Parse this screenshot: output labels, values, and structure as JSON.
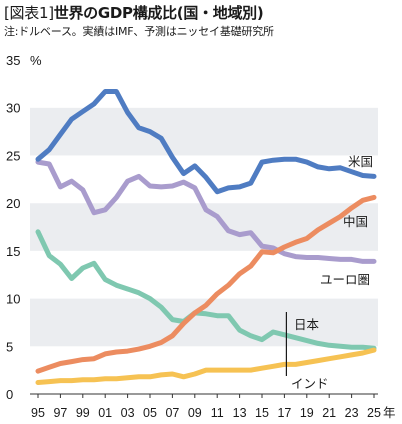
{
  "header": {
    "title_tag": "[図表1]",
    "title_main": "世界のGDP構成比(国・地域別)",
    "note": "注:ドルベース。実績はIMF、予測はニッセイ基礎研究所"
  },
  "chart_data": {
    "type": "line",
    "title": "世界のGDP構成比(国・地域別)",
    "yunit": "%",
    "ylim": [
      0,
      35
    ],
    "yticks": [
      "0",
      "5",
      "10",
      "15",
      "20",
      "25",
      "30",
      "35"
    ],
    "x": [
      1995,
      1996,
      1997,
      1998,
      1999,
      2000,
      2001,
      2002,
      2003,
      2004,
      2005,
      2006,
      2007,
      2008,
      2009,
      2010,
      2011,
      2012,
      2013,
      2014,
      2015,
      2016,
      2017,
      2018,
      2019,
      2020,
      2021,
      2022,
      2023,
      2024,
      2025
    ],
    "xticks": [
      "95",
      "97",
      "99",
      "01",
      "03",
      "05",
      "07",
      "09",
      "11",
      "13",
      "15",
      "17",
      "19",
      "21",
      "23",
      "25"
    ],
    "xunit": "年",
    "forecast_marker_year": 2017,
    "grid": "horizontal bands",
    "series": [
      {
        "name": "米国",
        "color": "#4f7cc2",
        "values": [
          24.6,
          25.6,
          27.2,
          28.8,
          29.6,
          30.4,
          31.7,
          31.7,
          29.5,
          27.9,
          27.5,
          26.8,
          24.8,
          23.1,
          23.9,
          22.7,
          21.2,
          21.6,
          21.7,
          22.1,
          24.3,
          24.5,
          24.6,
          24.6,
          24.3,
          23.8,
          23.6,
          23.7,
          23.3,
          22.9,
          22.8
        ]
      },
      {
        "name": "ユーロ圏",
        "color": "#a99ccd",
        "values": [
          24.3,
          24.1,
          21.7,
          22.3,
          21.4,
          19.0,
          19.3,
          20.6,
          22.3,
          22.8,
          21.8,
          21.7,
          21.8,
          22.2,
          21.6,
          19.3,
          18.6,
          17.1,
          16.7,
          16.9,
          15.5,
          15.3,
          14.7,
          14.4,
          14.3,
          14.3,
          14.2,
          14.1,
          14.1,
          13.9,
          13.9
        ]
      },
      {
        "name": "日本",
        "color": "#7fc8b0",
        "values": [
          17.0,
          14.5,
          13.6,
          12.1,
          13.2,
          13.7,
          12.0,
          11.4,
          11.0,
          10.6,
          10.0,
          9.1,
          7.8,
          7.6,
          8.5,
          8.4,
          8.2,
          8.2,
          6.7,
          6.1,
          5.7,
          6.5,
          6.2,
          5.9,
          5.6,
          5.3,
          5.1,
          5.0,
          4.9,
          4.9,
          4.8
        ]
      },
      {
        "name": "中国",
        "color": "#ec8c60",
        "values": [
          2.4,
          2.8,
          3.2,
          3.4,
          3.6,
          3.7,
          4.2,
          4.4,
          4.5,
          4.7,
          5.0,
          5.4,
          6.1,
          7.4,
          8.5,
          9.3,
          10.5,
          11.4,
          12.6,
          13.4,
          14.9,
          14.8,
          15.4,
          15.9,
          16.3,
          17.2,
          17.9,
          18.6,
          19.5,
          20.3,
          20.6
        ]
      },
      {
        "name": "インド",
        "color": "#f6c253",
        "values": [
          1.2,
          1.3,
          1.4,
          1.4,
          1.5,
          1.5,
          1.6,
          1.6,
          1.7,
          1.8,
          1.8,
          2.0,
          2.1,
          1.8,
          2.1,
          2.5,
          2.5,
          2.5,
          2.5,
          2.5,
          2.7,
          2.9,
          3.1,
          3.1,
          3.3,
          3.5,
          3.7,
          3.9,
          4.1,
          4.3,
          4.6
        ]
      }
    ]
  }
}
